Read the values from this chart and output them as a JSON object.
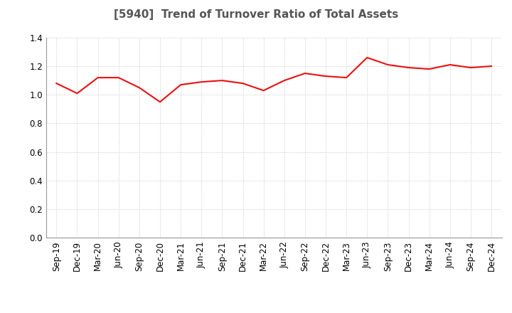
{
  "title": "[5940]  Trend of Turnover Ratio of Total Assets",
  "x_labels": [
    "Sep-19",
    "Dec-19",
    "Mar-20",
    "Jun-20",
    "Sep-20",
    "Dec-20",
    "Mar-21",
    "Jun-21",
    "Sep-21",
    "Dec-21",
    "Mar-22",
    "Jun-22",
    "Sep-22",
    "Dec-22",
    "Mar-23",
    "Jun-23",
    "Sep-23",
    "Dec-23",
    "Mar-24",
    "Jun-24",
    "Sep-24",
    "Dec-24"
  ],
  "y_values": [
    1.08,
    1.01,
    1.12,
    1.12,
    1.05,
    0.95,
    1.07,
    1.09,
    1.1,
    1.08,
    1.03,
    1.1,
    1.15,
    1.13,
    1.12,
    1.26,
    1.21,
    1.19,
    1.18,
    1.21,
    1.19,
    1.2
  ],
  "line_color": "#e81010",
  "line_width": 1.5,
  "ylim": [
    0.0,
    1.4
  ],
  "yticks": [
    0.0,
    0.2,
    0.4,
    0.6,
    0.8,
    1.0,
    1.2,
    1.4
  ],
  "grid_color": "#bbbbbb",
  "background_color": "#ffffff",
  "title_fontsize": 11,
  "tick_fontsize": 8.5
}
